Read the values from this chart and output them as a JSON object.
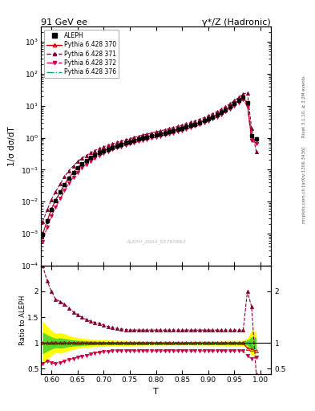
{
  "title_left": "91 GeV ee",
  "title_right": "γ*/Z (Hadronic)",
  "ylabel_main": "1/σ dσ/dT",
  "ylabel_ratio": "Ratio to ALEPH",
  "xlabel": "T",
  "right_label_top": "Rivet 3.1.10, ≥ 3.2M events",
  "right_label_bottom": "mcplots.cern.ch [arXiv:1306.3436]",
  "watermark": "ALEPH_2004_S5765862",
  "xlim": [
    0.58,
    1.02
  ],
  "ylim_main_lo": 0.0001,
  "ylim_main_hi": 3000,
  "ylim_ratio_lo": 0.4,
  "ylim_ratio_hi": 2.5,
  "aleph_color": "#000000",
  "py370_color": "#cc0000",
  "py371_color": "#880033",
  "py372_color": "#cc0044",
  "py376_color": "#009999",
  "band_yellow": "#ffff00",
  "band_green": "#33cc33",
  "T_bins": [
    0.583,
    0.592,
    0.6,
    0.608,
    0.617,
    0.625,
    0.633,
    0.642,
    0.65,
    0.658,
    0.667,
    0.675,
    0.683,
    0.692,
    0.7,
    0.708,
    0.717,
    0.725,
    0.733,
    0.742,
    0.75,
    0.758,
    0.767,
    0.775,
    0.783,
    0.792,
    0.8,
    0.808,
    0.817,
    0.825,
    0.833,
    0.842,
    0.85,
    0.858,
    0.867,
    0.875,
    0.883,
    0.892,
    0.9,
    0.908,
    0.917,
    0.925,
    0.933,
    0.942,
    0.95,
    0.958,
    0.967,
    0.975,
    0.983,
    0.992
  ],
  "aleph_y": [
    0.00095,
    0.0025,
    0.0058,
    0.011,
    0.02,
    0.034,
    0.055,
    0.082,
    0.115,
    0.152,
    0.193,
    0.237,
    0.284,
    0.335,
    0.387,
    0.441,
    0.499,
    0.56,
    0.622,
    0.686,
    0.752,
    0.819,
    0.9,
    0.972,
    1.048,
    1.13,
    1.215,
    1.315,
    1.42,
    1.538,
    1.66,
    1.82,
    1.99,
    2.19,
    2.42,
    2.68,
    3.01,
    3.41,
    3.88,
    4.49,
    5.25,
    6.25,
    7.56,
    9.28,
    11.6,
    14.6,
    18.6,
    12.8,
    1.15,
    0.92
  ],
  "aleph_ey": [
    0.0002,
    0.0004,
    0.0007,
    0.001,
    0.002,
    0.003,
    0.004,
    0.005,
    0.006,
    0.007,
    0.008,
    0.009,
    0.01,
    0.011,
    0.012,
    0.013,
    0.014,
    0.015,
    0.016,
    0.017,
    0.018,
    0.019,
    0.02,
    0.021,
    0.022,
    0.023,
    0.024,
    0.026,
    0.028,
    0.03,
    0.032,
    0.035,
    0.038,
    0.042,
    0.047,
    0.053,
    0.06,
    0.07,
    0.082,
    0.096,
    0.115,
    0.14,
    0.18,
    0.22,
    0.28,
    0.36,
    0.5,
    0.6,
    0.14,
    0.1
  ],
  "ratio_370": [
    1.0,
    1.0,
    1.0,
    1.0,
    1.0,
    1.0,
    1.0,
    1.0,
    1.0,
    1.0,
    1.0,
    1.0,
    1.0,
    1.0,
    1.0,
    1.0,
    1.0,
    1.0,
    1.0,
    1.0,
    1.0,
    1.0,
    1.0,
    1.0,
    1.0,
    1.0,
    1.0,
    1.0,
    1.0,
    1.0,
    1.0,
    1.0,
    1.0,
    1.0,
    1.0,
    1.0,
    1.0,
    1.0,
    1.0,
    1.0,
    1.0,
    1.0,
    1.0,
    1.0,
    1.0,
    1.0,
    1.0,
    0.9,
    0.88,
    0.85
  ],
  "ratio_371": [
    2.5,
    2.2,
    2.0,
    1.85,
    1.8,
    1.75,
    1.68,
    1.6,
    1.55,
    1.5,
    1.45,
    1.42,
    1.4,
    1.38,
    1.35,
    1.32,
    1.3,
    1.28,
    1.27,
    1.26,
    1.25,
    1.25,
    1.25,
    1.25,
    1.25,
    1.25,
    1.25,
    1.25,
    1.25,
    1.25,
    1.25,
    1.25,
    1.25,
    1.25,
    1.25,
    1.25,
    1.25,
    1.25,
    1.25,
    1.25,
    1.25,
    1.25,
    1.25,
    1.25,
    1.25,
    1.25,
    1.25,
    2.0,
    1.7,
    0.4
  ],
  "ratio_372": [
    0.6,
    0.65,
    0.62,
    0.6,
    0.62,
    0.65,
    0.68,
    0.7,
    0.72,
    0.74,
    0.76,
    0.78,
    0.8,
    0.82,
    0.83,
    0.84,
    0.85,
    0.85,
    0.85,
    0.85,
    0.85,
    0.85,
    0.85,
    0.85,
    0.85,
    0.85,
    0.85,
    0.85,
    0.85,
    0.85,
    0.85,
    0.85,
    0.85,
    0.85,
    0.85,
    0.85,
    0.85,
    0.85,
    0.85,
    0.85,
    0.85,
    0.85,
    0.85,
    0.85,
    0.85,
    0.85,
    0.85,
    0.75,
    0.7,
    0.72
  ],
  "ratio_376": [
    1.0,
    1.0,
    1.02,
    1.02,
    1.02,
    1.02,
    1.02,
    1.01,
    1.01,
    1.01,
    1.01,
    1.01,
    1.01,
    1.01,
    1.01,
    1.01,
    1.01,
    1.01,
    1.01,
    1.01,
    1.01,
    1.01,
    1.01,
    1.01,
    1.01,
    1.01,
    1.01,
    1.01,
    1.01,
    1.01,
    1.01,
    1.01,
    1.01,
    1.01,
    1.01,
    1.01,
    1.01,
    1.01,
    1.01,
    1.01,
    1.01,
    1.01,
    1.01,
    1.01,
    1.01,
    1.01,
    1.01,
    1.05,
    0.92,
    0.88
  ]
}
